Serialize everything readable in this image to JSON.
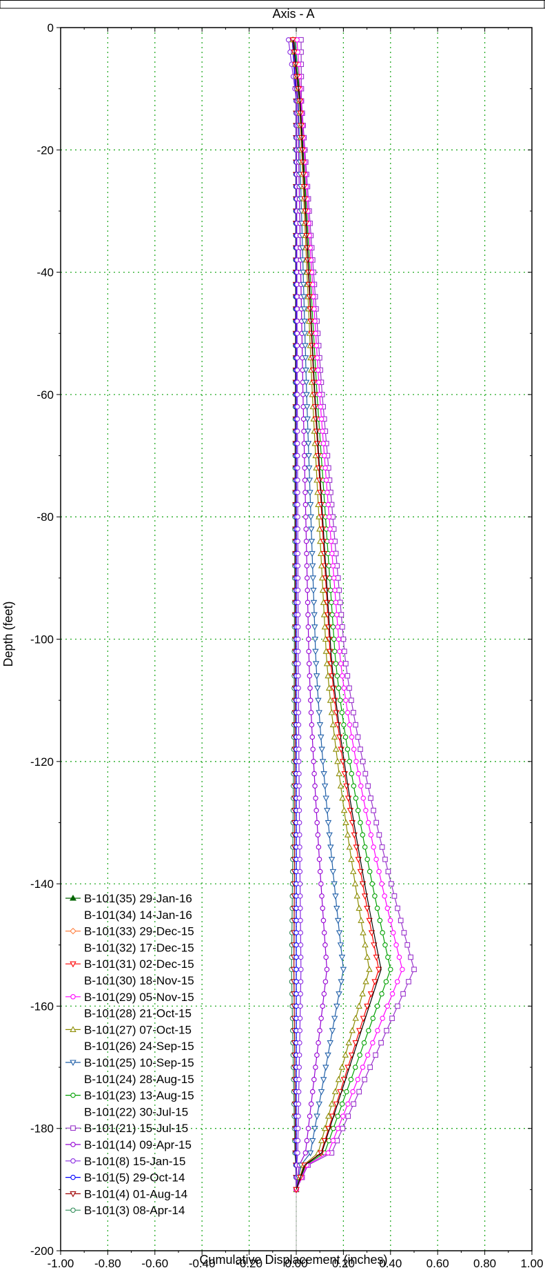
{
  "chart_data": {
    "type": "line",
    "title": "Axis - A",
    "xlabel": "Cumulative Displacement (inches)",
    "ylabel": "Depth (feet)",
    "xlim": [
      -1.0,
      1.0
    ],
    "ylim": [
      -200,
      0
    ],
    "x_ticks": [
      "-1.00",
      "-0.80",
      "-0.60",
      "-0.40",
      "-0.20",
      "0.00",
      "0.20",
      "0.40",
      "0.60",
      "0.80",
      "1.00"
    ],
    "y_ticks": [
      "0",
      "-20",
      "-40",
      "-60",
      "-80",
      "-100",
      "-120",
      "-140",
      "-160",
      "-180",
      "-200"
    ],
    "grid": true,
    "legend_position": "bottom-left",
    "depth_profile": [
      -2,
      -4,
      -6,
      -8,
      -10,
      -12,
      -14,
      -16,
      -18,
      -20,
      -22,
      -24,
      -26,
      -28,
      -30,
      -32,
      -34,
      -36,
      -38,
      -40,
      -42,
      -44,
      -46,
      -48,
      -50,
      -52,
      -54,
      -56,
      -58,
      -60,
      -62,
      -64,
      -66,
      -68,
      -70,
      -72,
      -74,
      -76,
      -78,
      -80,
      -82,
      -84,
      -86,
      -88,
      -90,
      -92,
      -94,
      -96,
      -98,
      -100,
      -102,
      -104,
      -106,
      -108,
      -110,
      -112,
      -114,
      -116,
      -118,
      -120,
      -122,
      -124,
      -126,
      -128,
      -130,
      -132,
      -134,
      -136,
      -138,
      -140,
      -142,
      -144,
      -146,
      -148,
      -150,
      -152,
      -154,
      -156,
      -158,
      -160,
      -162,
      -164,
      -166,
      -168,
      -170,
      -172,
      -174,
      -176,
      -178,
      -180,
      -182,
      -184,
      -186,
      -188,
      -190
    ],
    "series": [
      {
        "name": "B-101(35) 29-Jan-16",
        "color": "#006400",
        "marker": "triangle-up-filled",
        "shown": false,
        "max_x": 0.37,
        "top_offset": -0.03
      },
      {
        "name": "B-101(34) 14-Jan-16",
        "color": "#000000",
        "marker": "none",
        "shown": false,
        "max_x": 0.36,
        "top_offset": -0.03
      },
      {
        "name": "B-101(33) 29-Dec-15",
        "color": "#ff8040",
        "marker": "diamond",
        "shown": false,
        "max_x": 0.36,
        "top_offset": -0.03
      },
      {
        "name": "B-101(32) 17-Dec-15",
        "color": "#000000",
        "marker": "none",
        "shown": true,
        "max_x": 0.36,
        "top_offset": -0.02
      },
      {
        "name": "B-101(31) 02-Dec-15",
        "color": "#ff0000",
        "marker": "triangle-down",
        "shown": true,
        "max_x": 0.35,
        "top_offset": -0.02
      },
      {
        "name": "B-101(30) 18-Nov-15",
        "color": "#000000",
        "marker": "none",
        "shown": false,
        "max_x": 0.34,
        "top_offset": -0.02
      },
      {
        "name": "B-101(29) 05-Nov-15",
        "color": "#ff00ff",
        "marker": "circle",
        "shown": true,
        "max_x": 0.45,
        "top_offset": 0.0
      },
      {
        "name": "B-101(28) 21-Oct-15",
        "color": "#000000",
        "marker": "none",
        "shown": false,
        "max_x": 0.33,
        "top_offset": -0.02
      },
      {
        "name": "B-101(27) 07-Oct-15",
        "color": "#8b8b00",
        "marker": "triangle-up",
        "shown": true,
        "max_x": 0.31,
        "top_offset": -0.02
      },
      {
        "name": "B-101(26) 24-Sep-15",
        "color": "#000000",
        "marker": "none",
        "shown": false,
        "max_x": 0.3,
        "top_offset": -0.02
      },
      {
        "name": "B-101(25) 10-Sep-15",
        "color": "#1f5fa8",
        "marker": "triangle-down",
        "shown": true,
        "max_x": 0.2,
        "top_offset": -0.01
      },
      {
        "name": "B-101(24) 28-Aug-15",
        "color": "#000000",
        "marker": "none",
        "shown": false,
        "max_x": 0.38,
        "top_offset": -0.02
      },
      {
        "name": "B-101(23) 13-Aug-15",
        "color": "#00a000",
        "marker": "circle",
        "shown": true,
        "max_x": 0.4,
        "top_offset": -0.01
      },
      {
        "name": "B-101(22) 30-Jul-15",
        "color": "#000000",
        "marker": "none",
        "shown": false,
        "max_x": 0.37,
        "top_offset": -0.02
      },
      {
        "name": "B-101(21) 15-Jul-15",
        "color": "#9932cc",
        "marker": "square",
        "shown": true,
        "max_x": 0.5,
        "top_offset": 0.02
      },
      {
        "name": "B-101(14) 09-Apr-15",
        "color": "#9400d3",
        "marker": "circle",
        "shown": true,
        "max_x": 0.13,
        "top_offset": -0.02
      },
      {
        "name": "B-101(8) 15-Jan-15",
        "color": "#8a2be2",
        "marker": "circle",
        "shown": true,
        "max_x": 0.02,
        "top_offset": -0.04
      },
      {
        "name": "B-101(5) 29-Oct-14",
        "color": "#0000ff",
        "marker": "circle",
        "shown": true,
        "max_x": 0.0,
        "top_offset": -0.02
      },
      {
        "name": "B-101(4) 01-Aug-14",
        "color": "#a00000",
        "marker": "triangle-down",
        "shown": true,
        "max_x": -0.01,
        "top_offset": -0.01
      },
      {
        "name": "B-101(3) 08-Apr-14",
        "color": "#2e8b57",
        "marker": "circle",
        "shown": true,
        "max_x": -0.02,
        "top_offset": -0.02
      }
    ]
  }
}
